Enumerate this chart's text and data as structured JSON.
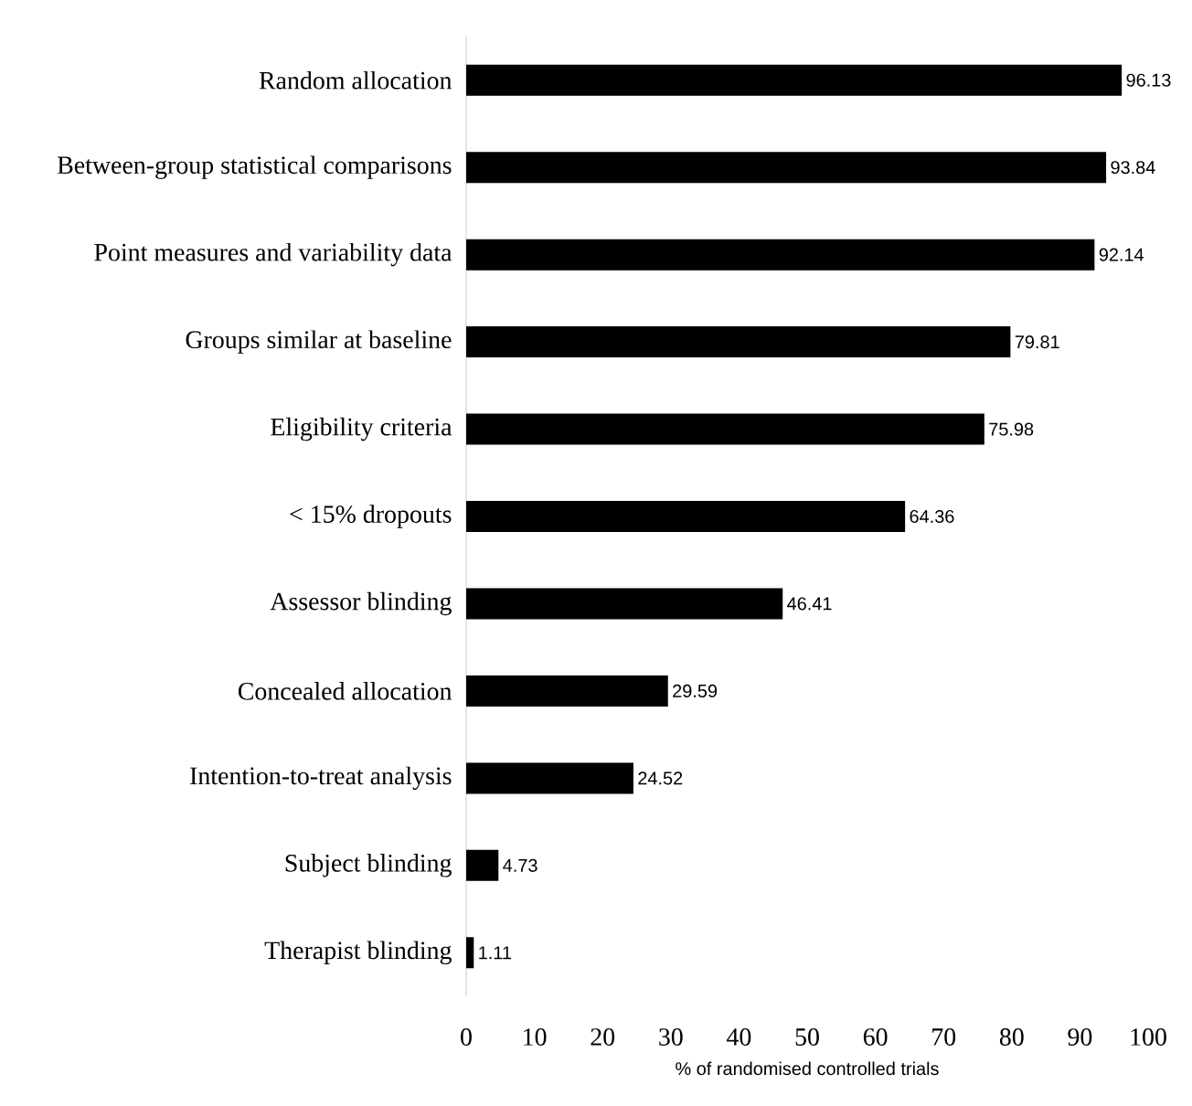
{
  "chart_data": {
    "type": "bar",
    "orientation": "horizontal",
    "xlabel": "% of randomised controlled trials",
    "categories": [
      "Random allocation",
      "Between-group statistical comparisons",
      "Point measures and variability data",
      "Groups similar at baseline",
      "Eligibility criteria",
      "< 15% dropouts",
      "Assessor blinding",
      "Concealed allocation",
      "Intention-to-treat analysis",
      "Subject blinding",
      "Therapist blinding"
    ],
    "values": [
      96.13,
      93.84,
      92.14,
      79.81,
      75.98,
      64.36,
      46.41,
      29.59,
      24.52,
      4.73,
      1.11
    ],
    "color": "#000000",
    "data_labels": true,
    "xlim": [
      0,
      100
    ],
    "xticks": [
      0,
      10,
      20,
      30,
      40,
      50,
      60,
      70,
      80,
      90,
      100
    ]
  }
}
